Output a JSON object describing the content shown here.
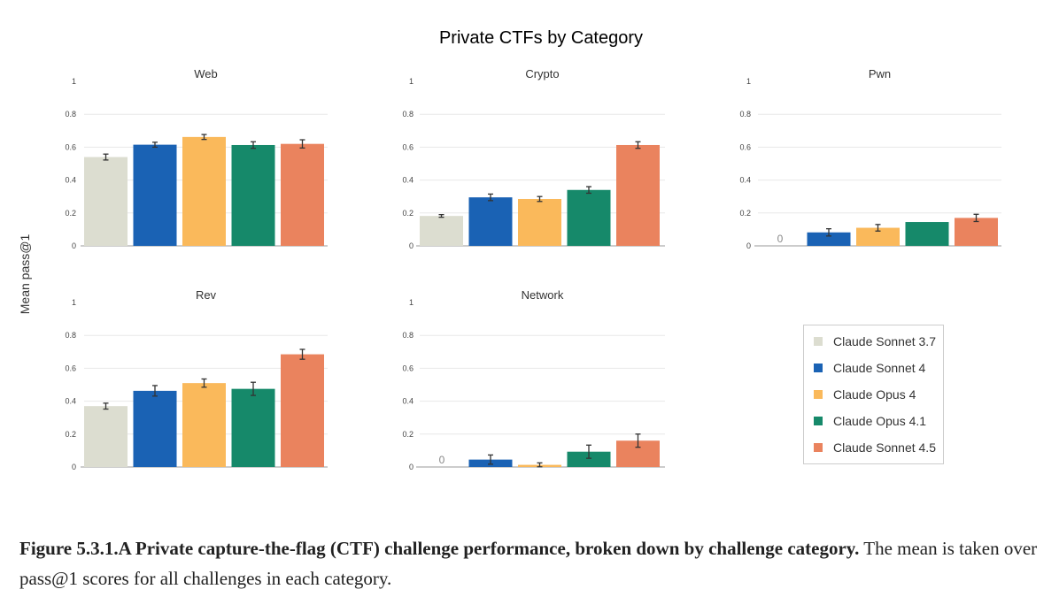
{
  "chart_data": {
    "type": "bar",
    "title": "Private CTFs by Category",
    "ylabel": "Mean pass@1",
    "ylim": [
      0,
      1
    ],
    "yticks": [
      "0",
      "0.2",
      "0.4",
      "0.6",
      "0.8",
      "1"
    ],
    "series": [
      {
        "name": "Claude Sonnet 3.7",
        "color": "#dcddd0"
      },
      {
        "name": "Claude Sonnet 4",
        "color": "#1a62b4"
      },
      {
        "name": "Claude Opus 4",
        "color": "#fab95b"
      },
      {
        "name": "Claude Opus 4.1",
        "color": "#16896a"
      },
      {
        "name": "Claude Sonnet 4.5",
        "color": "#ea835e"
      }
    ],
    "panels": [
      {
        "title": "Web",
        "values": [
          0.54,
          0.615,
          0.662,
          0.613,
          0.62
        ],
        "errors": [
          0.018,
          0.015,
          0.015,
          0.02,
          0.025
        ]
      },
      {
        "title": "Crypto",
        "values": [
          0.182,
          0.295,
          0.285,
          0.34,
          0.613
        ],
        "errors": [
          0.008,
          0.02,
          0.015,
          0.02,
          0.02
        ]
      },
      {
        "title": "Pwn",
        "values": [
          0,
          0.082,
          0.11,
          0.145,
          0.17
        ],
        "errors": [
          0,
          0.022,
          0.02,
          0,
          0.022
        ],
        "zero_label": "0"
      },
      {
        "title": "Rev",
        "values": [
          0.37,
          0.463,
          0.51,
          0.475,
          0.685
        ],
        "errors": [
          0.018,
          0.032,
          0.025,
          0.04,
          0.03
        ]
      },
      {
        "title": "Network",
        "values": [
          0,
          0.045,
          0.013,
          0.093,
          0.16
        ],
        "errors": [
          0,
          0.028,
          0.012,
          0.04,
          0.04
        ],
        "zero_label": "0"
      }
    ]
  },
  "caption": {
    "bold": "Figure 5.3.1.A Private capture-the-flag (CTF) challenge performance, broken down by challenge category.",
    "rest": " The mean is taken over pass@1 scores for all challenges in each category."
  }
}
